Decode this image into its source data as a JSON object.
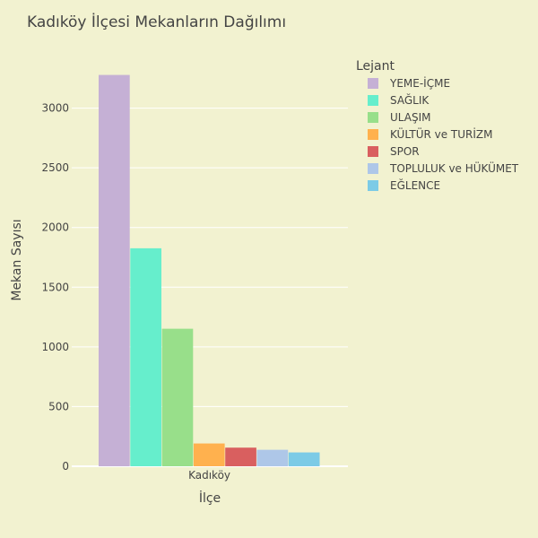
{
  "chart_data": {
    "type": "bar",
    "title": "Kadıköy İlçesi Mekanların Dağılımı",
    "xlabel": "İlçe",
    "ylabel": "Mekan Sayısı",
    "categories": [
      "Kadıköy"
    ],
    "ylim": [
      0,
      3380
    ],
    "yticks": [
      0,
      500,
      1000,
      1500,
      2000,
      2500,
      3000
    ],
    "grid": true,
    "legend": {
      "title": "Lejant",
      "position": "right"
    },
    "series": [
      {
        "name": "YEME-İÇME",
        "values": [
          3278
        ],
        "color": "#c5b0d5"
      },
      {
        "name": "SAĞLIK",
        "values": [
          1826
        ],
        "color": "#66eecc"
      },
      {
        "name": "ULAŞIM",
        "values": [
          1152
        ],
        "color": "#98df8a"
      },
      {
        "name": "KÜLTÜR ve TURİZM",
        "values": [
          191
        ],
        "color": "#ffb14e"
      },
      {
        "name": "SPOR",
        "values": [
          156
        ],
        "color": "#d95f5f"
      },
      {
        "name": "TOPLULUK ve HÜKÜMET",
        "values": [
          138
        ],
        "color": "#aec7e8"
      },
      {
        "name": "EĞLENCE",
        "values": [
          116
        ],
        "color": "#7ccbe6"
      }
    ]
  }
}
